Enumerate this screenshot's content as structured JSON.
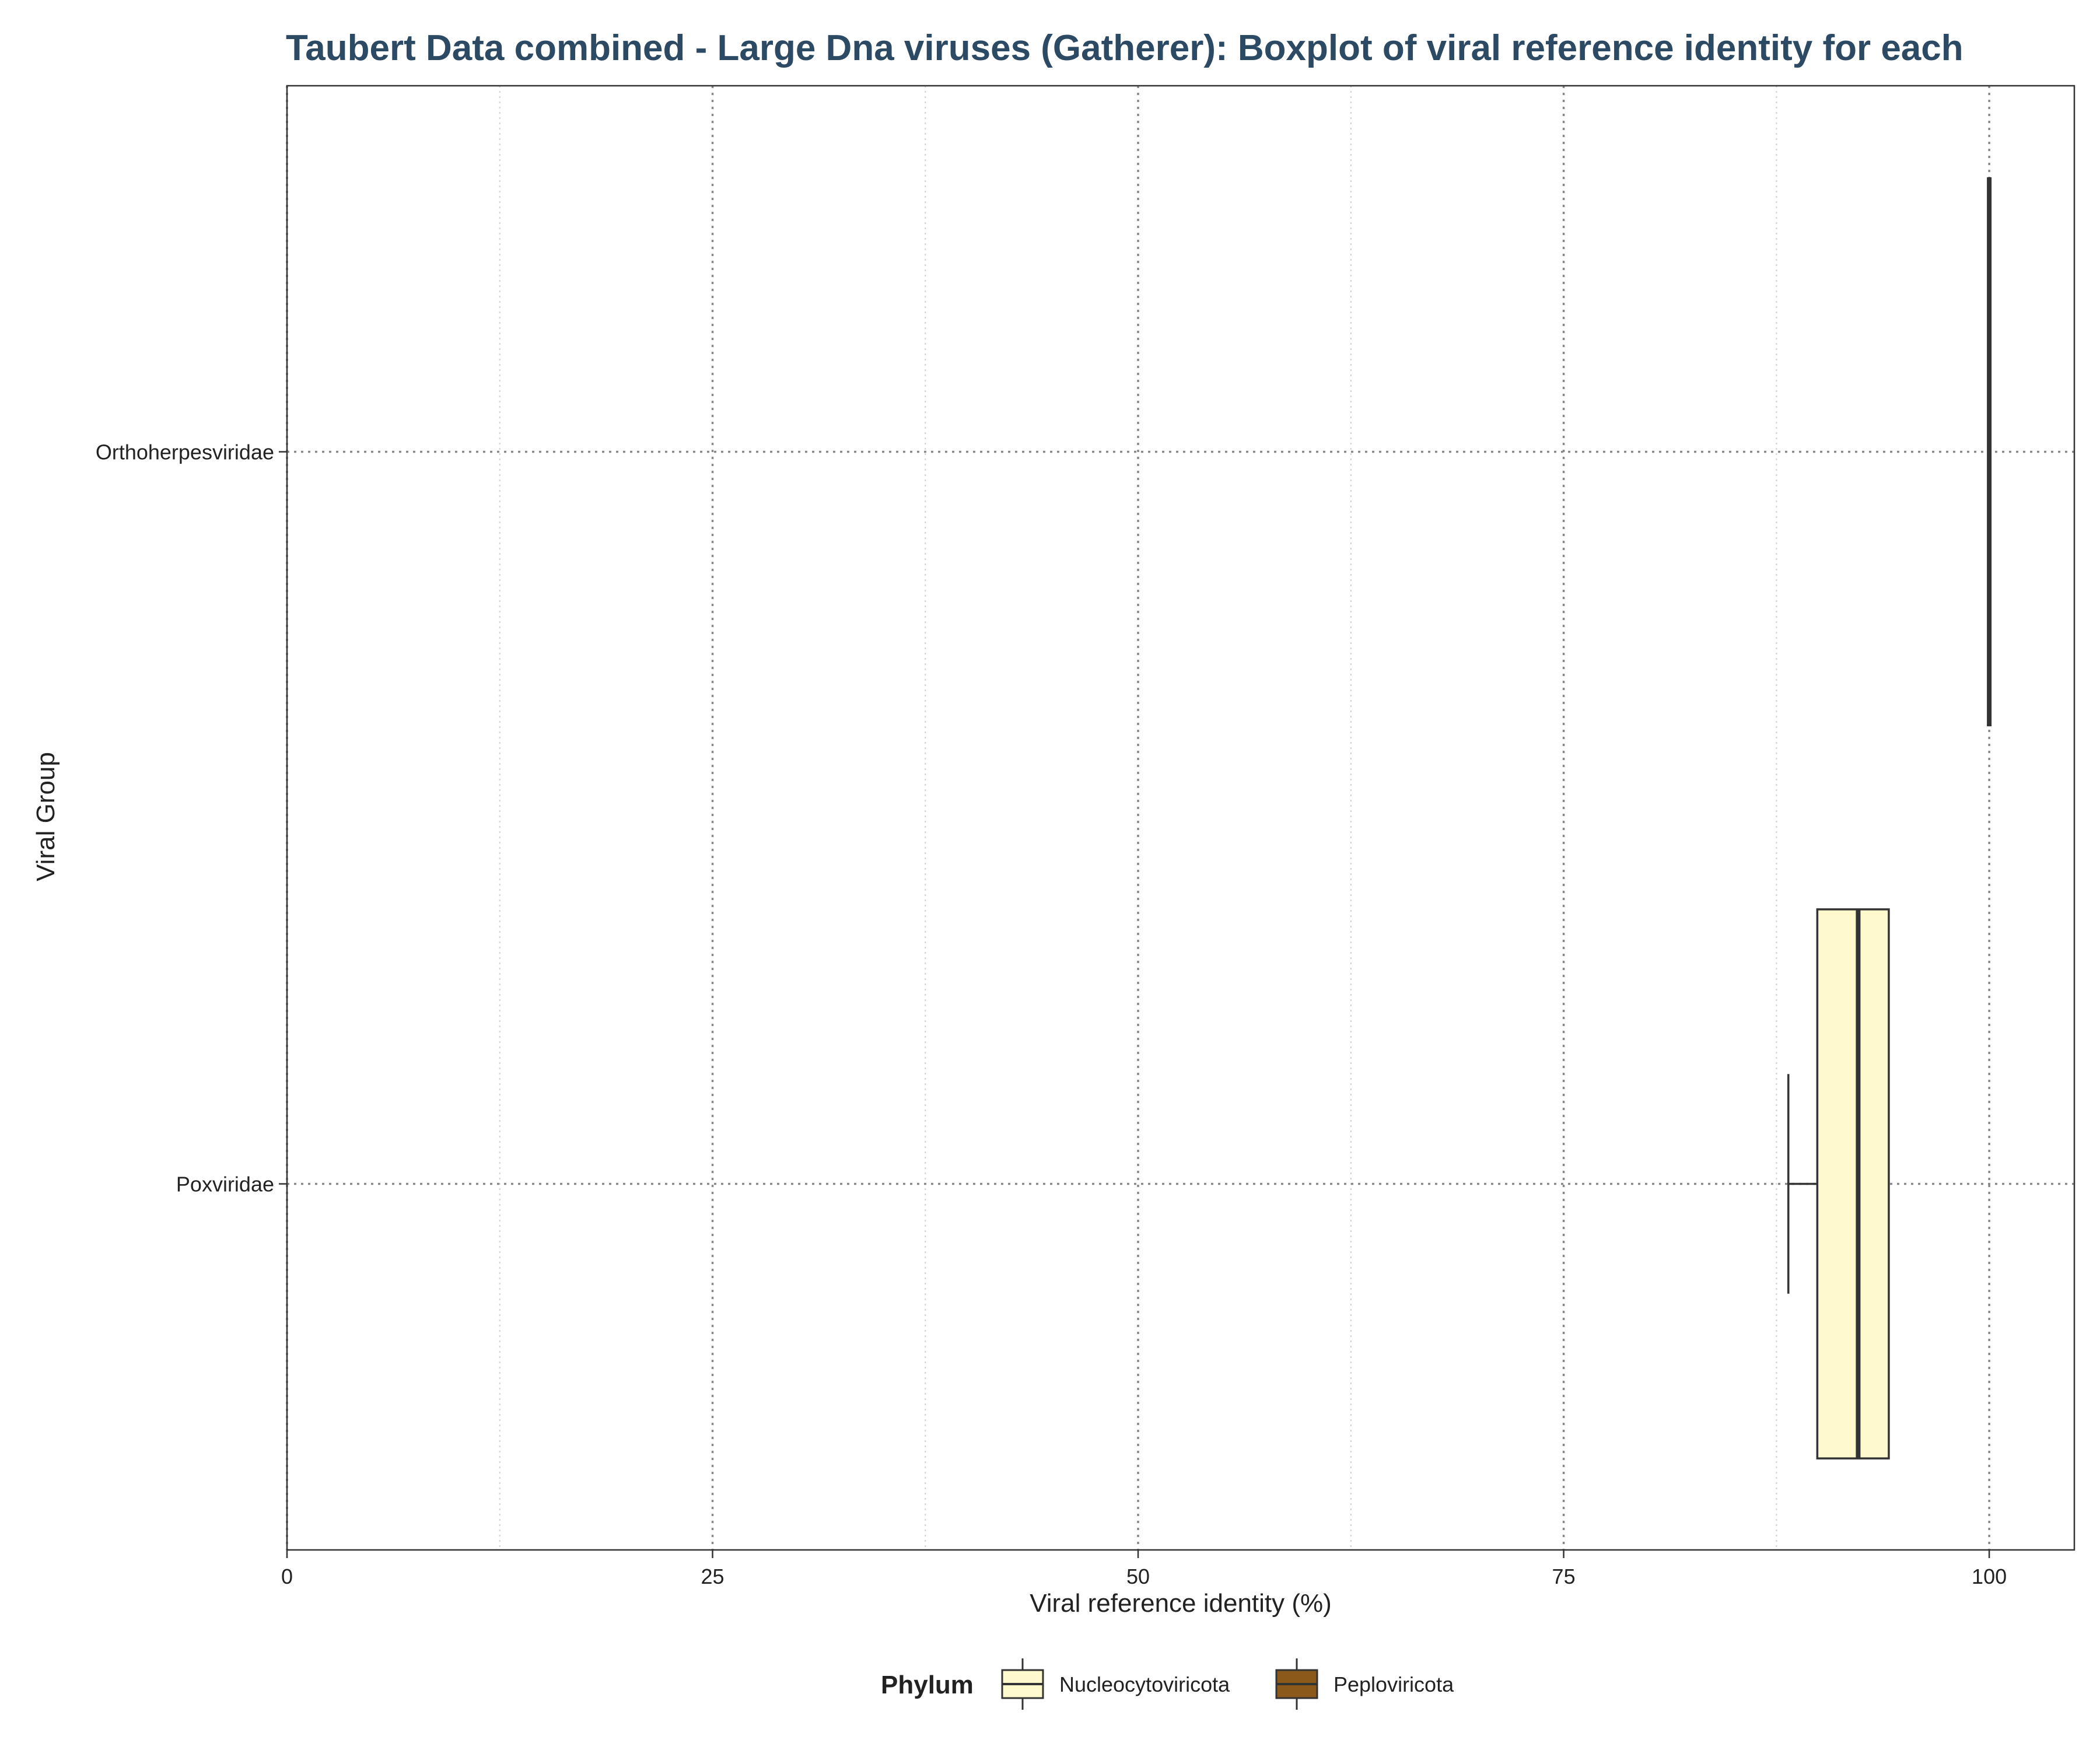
{
  "chart_data": {
    "type": "boxplot",
    "orientation": "horizontal",
    "title": "Taubert Data combined - Large Dna viruses (Gatherer): Boxplot of viral reference identity for each",
    "xlabel": "Viral reference identity (%)",
    "ylabel": "Viral Group",
    "xlim": [
      0,
      105
    ],
    "x_ticks": [
      0,
      25,
      50,
      75,
      100
    ],
    "categories": [
      "Orthoherpesviridae",
      "Poxviridae"
    ],
    "grid": true,
    "legend": {
      "title": "Phylum",
      "position": "bottom",
      "entries": [
        {
          "label": "Nucleocytoviricota",
          "color": "#fffacd"
        },
        {
          "label": "Peploviricota",
          "color": "#8b5a1b"
        }
      ]
    },
    "series": [
      {
        "category": "Orthoherpesviridae",
        "phylum": "Peploviricota",
        "min": 100,
        "q1": 100,
        "median": 100,
        "q3": 100,
        "max": 100
      },
      {
        "category": "Poxviridae",
        "phylum": "Nucleocytoviricota",
        "min": 88.2,
        "q1": 89.9,
        "median": 92.3,
        "q3": 94.1,
        "max": 94.1
      }
    ]
  }
}
